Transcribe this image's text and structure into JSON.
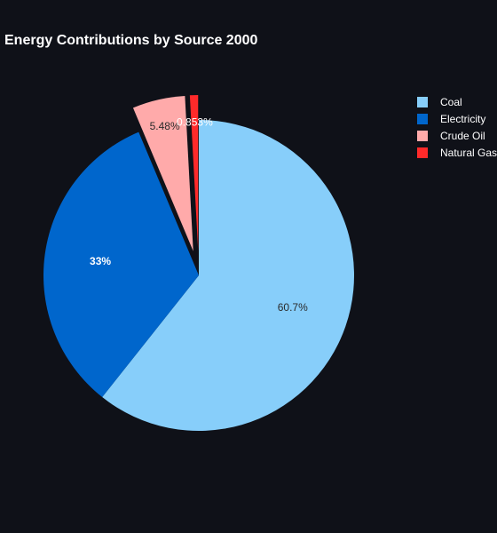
{
  "chart_data": {
    "type": "pie",
    "title": "Energy Contributions by Source 2000",
    "slices": [
      {
        "name": "Coal",
        "value": 60.7,
        "label": "60.7%",
        "color": "#87cefa",
        "label_color": "#2b2b2b",
        "pulled": false
      },
      {
        "name": "Electricity",
        "value": 33,
        "label": "33%",
        "color": "#0066cc",
        "label_color": "#ffffff",
        "pulled": false
      },
      {
        "name": "Crude Oil",
        "value": 5.48,
        "label": "5.48%",
        "color": "#ffaaaa",
        "label_color": "#2b2b2b",
        "pulled": true
      },
      {
        "name": "Natural Gas",
        "value": 0.853,
        "label": "0.853%",
        "color": "#ff2a2a",
        "label_color": "#ffffff",
        "pulled": true
      }
    ],
    "legend": {
      "position": "top-right"
    },
    "background": "#0f1118"
  }
}
